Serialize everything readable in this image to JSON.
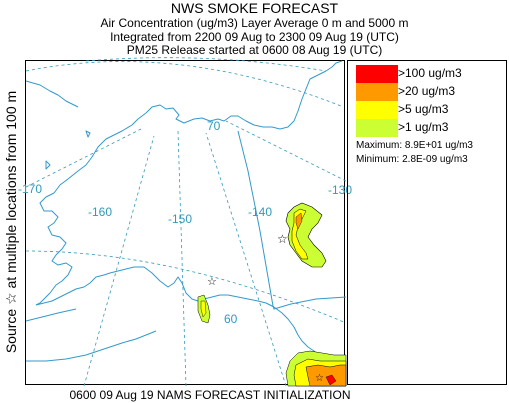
{
  "header": {
    "title": "NWS SMOKE FORECAST",
    "line1": "Air Concentration (ug/m3) Layer Average    0 m and  5000 m",
    "line2": "Integrated from 2200 09 Aug to 2300 09 Aug 19 (UTC)",
    "line3": "PM25 Release started at 0600 08 Aug 19 (UTC)"
  },
  "side_label": "Source ☆  at multiple locations     from   100 m",
  "footer": "0600 09 Aug 19 NAMS FORECAST INITIALIZATION",
  "legend": {
    "items": [
      {
        "label": ">100 ug/m3",
        "color": "#ff0000"
      },
      {
        "label": ">20 ug/m3",
        "color": "#ff9900"
      },
      {
        "label": ">5 ug/m3",
        "color": "#ffff00"
      },
      {
        "label": ">1 ug/m3",
        "color": "#ccff33"
      }
    ],
    "maximum": "Maximum: 8.9E+01 ug/m3",
    "minimum": "Minimum: 2.8E-09 ug/m3"
  },
  "map": {
    "coast_color": "#3399cc",
    "grid_color": "#3399bb",
    "boundary_color": "#3399cc",
    "source_marker": "star-icon",
    "grid_labels": {
      "lon_170": "-170",
      "lon_160": "-160",
      "lon_150": "-150",
      "lon_140": "-140",
      "lon_130": "-130",
      "lat_70": "70",
      "lat_60": "60"
    }
  }
}
